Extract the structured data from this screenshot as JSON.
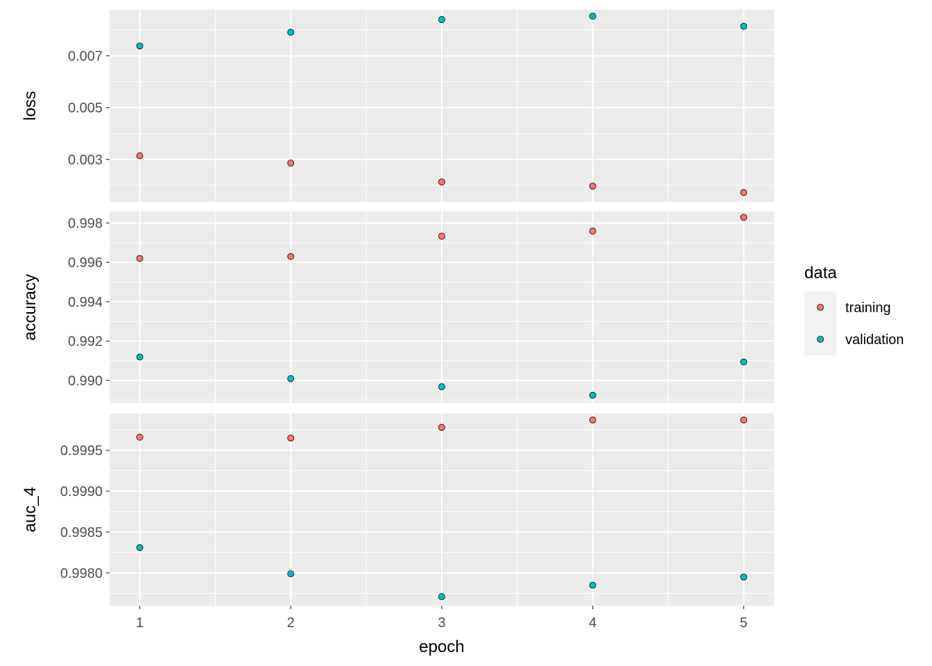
{
  "chart_data": {
    "type": "scatter",
    "xlabel": "epoch",
    "x": [
      1,
      2,
      3,
      4,
      5
    ],
    "x_ticks": [
      "1",
      "2",
      "3",
      "4",
      "5"
    ],
    "xlim": [
      0.8,
      5.2
    ],
    "grid": true,
    "legend": {
      "title": "data",
      "position": "right",
      "entries": [
        {
          "name": "training",
          "color": "#F8766D"
        },
        {
          "name": "validation",
          "color": "#00BFC4"
        }
      ]
    },
    "panels": [
      {
        "ylabel": "loss",
        "ylim": [
          0.00136,
          0.00878
        ],
        "y_ticks": [
          0.003,
          0.005,
          0.007
        ],
        "y_tick_labels": [
          "0.003",
          "0.005",
          "0.007"
        ],
        "series": [
          {
            "name": "training",
            "values": [
              0.00314,
              0.00286,
              0.00213,
              0.00197,
              0.00172
            ]
          },
          {
            "name": "validation",
            "values": [
              0.00738,
              0.00791,
              0.0084,
              0.00853,
              0.00814
            ]
          }
        ]
      },
      {
        "ylabel": "accuracy",
        "ylim": [
          0.98885,
          0.99858
        ],
        "y_ticks": [
          0.99,
          0.992,
          0.994,
          0.996,
          0.998
        ],
        "y_tick_labels": [
          "0.990",
          "0.992",
          "0.994",
          "0.996",
          "0.998"
        ],
        "series": [
          {
            "name": "training",
            "values": [
              0.9962,
              0.9963,
              0.99733,
              0.99759,
              0.99829
            ]
          },
          {
            "name": "validation",
            "values": [
              0.99119,
              0.99009,
              0.98968,
              0.98925,
              0.99094
            ]
          }
        ]
      },
      {
        "ylabel": "auc_4",
        "ylim": [
          0.9976,
          0.99995
        ],
        "y_ticks": [
          0.998,
          0.9985,
          0.999,
          0.9995
        ],
        "y_tick_labels": [
          "0.9980",
          "0.9985",
          "0.9990",
          "0.9995"
        ],
        "series": [
          {
            "name": "training",
            "values": [
              0.99966,
              0.99965,
              0.99978,
              0.99987,
              0.99987
            ]
          },
          {
            "name": "validation",
            "values": [
              0.99831,
              0.99799,
              0.99771,
              0.99785,
              0.99795
            ]
          }
        ]
      }
    ]
  }
}
